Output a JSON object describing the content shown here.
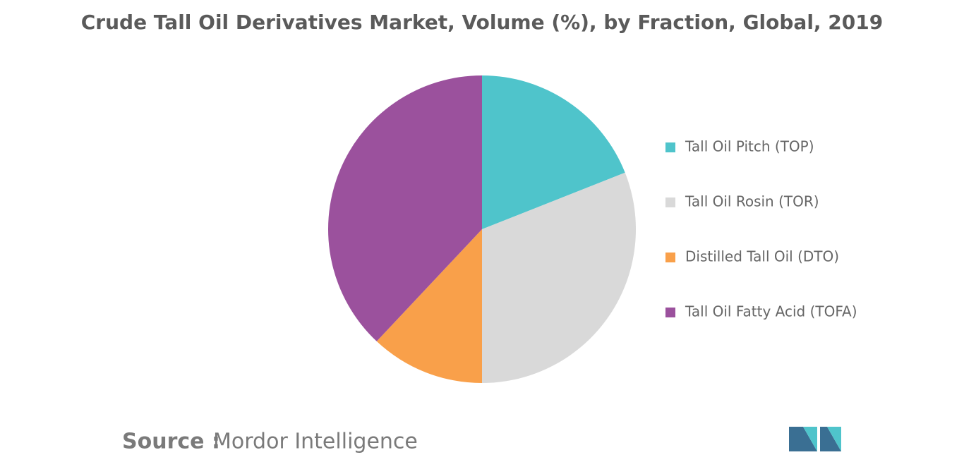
{
  "chart_data": {
    "type": "pie",
    "title": "Crude Tall Oil Derivatives Market, Volume (%), by Fraction, Global, 2019",
    "categories": [
      "Tall Oil Pitch (TOP)",
      "Tall Oil Rosin (TOR)",
      "Distilled Tall Oil (DTO)",
      "Tall Oil Fatty Acid (TOFA)"
    ],
    "values": [
      19,
      31,
      12,
      38
    ],
    "colors": [
      "#4fc4cb",
      "#d9d9d9",
      "#f9a04a",
      "#9b519d"
    ],
    "legend": "right"
  },
  "footer": {
    "source_label": "Source :",
    "source": "Mordor Intelligence"
  }
}
